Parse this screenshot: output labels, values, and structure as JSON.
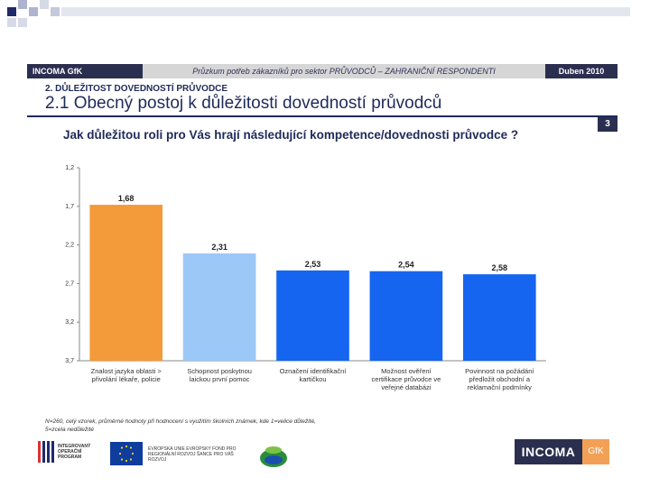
{
  "header": {
    "left": "INCOMA GfK",
    "center": "Průzkum potřeb zákazníků pro sektor PRŮVODCŮ – ZAHRANIČNÍ RESPONDENTI",
    "right": "Duben 2010"
  },
  "section": "2. DŮLEŽITOST DOVEDNOSTÍ PRŮVODCE",
  "title": "2.1 Obecný postoj k důležitosti dovedností průvodců",
  "page_number": "3",
  "question": "Jak důležitou roli pro Vás hrají následující kompetence/dovednosti průvodce ?",
  "chart_data": {
    "type": "bar",
    "categories": [
      [
        "Znalost jazyka oblasti >",
        "přivolání lékaře, policie"
      ],
      [
        "Schopnost poskytnou",
        "laickou první pomoc"
      ],
      [
        "Označení identifikační",
        "kartičkou"
      ],
      [
        "Možnost ověření",
        "certifikace průvodce ve",
        "veřejné databázi"
      ],
      [
        "Povinnost na požádání",
        "předložit obchodní a",
        "reklamační podmínky"
      ]
    ],
    "values": [
      1.68,
      2.31,
      2.53,
      2.54,
      2.58
    ],
    "value_labels": [
      "1,68",
      "2,31",
      "2,53",
      "2,54",
      "2,58"
    ],
    "y_ticks": [
      "1,2",
      "1,7",
      "2,2",
      "2,7",
      "3,2",
      "3,7"
    ],
    "ylim": [
      1.2,
      3.7
    ],
    "y_inverted": true,
    "colors": [
      "#f39a3a",
      "#9cc8f8",
      "#1565f0",
      "#1565f0",
      "#1565f0"
    ],
    "grid": false
  },
  "footnote": "N=260, celý vzorek, průměrné hodnoty při hodnocení s využitím školních známek, kde 1=velice důležité, 5=zcela nedůležité",
  "logos": {
    "iop_text": "INTEGROVANÝ OPERAČNÍ PROGRAM",
    "eu_text": "EVROPSKÁ UNIE EVROPSKÝ FOND PRO REGIONÁLNÍ ROZVOJ ŠANCE PRO VÁŠ ROZVOJ",
    "incoma": "INCOMA",
    "gfk": "GfK"
  },
  "colors": {
    "navy": "#2b2f4f",
    "orange": "#f39a3a",
    "light_blue": "#9cc8f8",
    "blue": "#1565f0"
  }
}
